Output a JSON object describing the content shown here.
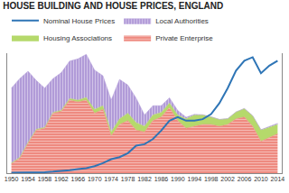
{
  "chart_data": {
    "type": "area",
    "title": "HOUSE BUILDING AND HOUSE PRICES, ENGLAND",
    "x": [
      1950,
      1952,
      1954,
      1956,
      1958,
      1960,
      1962,
      1964,
      1966,
      1968,
      1970,
      1972,
      1974,
      1976,
      1978,
      1980,
      1982,
      1984,
      1986,
      1988,
      1990,
      1992,
      1994,
      1996,
      1998,
      2000,
      2002,
      2004,
      2006,
      2008,
      2010,
      2012,
      2014
    ],
    "series": [
      {
        "name": "Private Enterprise",
        "color": "#ee8a80",
        "values": [
          25,
          40,
          80,
          115,
          120,
          160,
          165,
          195,
          190,
          195,
          160,
          170,
          100,
          130,
          140,
          115,
          110,
          140,
          150,
          175,
          140,
          120,
          125,
          130,
          130,
          125,
          130,
          145,
          150,
          125,
          85,
          95,
          105
        ]
      },
      {
        "name": "Housing Associations",
        "color": "#b5d96b",
        "values": [
          2,
          2,
          2,
          2,
          2,
          2,
          3,
          4,
          5,
          7,
          10,
          10,
          10,
          15,
          20,
          20,
          15,
          15,
          12,
          12,
          15,
          25,
          30,
          25,
          20,
          18,
          15,
          18,
          22,
          28,
          30,
          28,
          25
        ]
      },
      {
        "name": "Local Authorities",
        "color": "#b19bd8",
        "values": [
          200,
          210,
          190,
          130,
          105,
          90,
          100,
          100,
          110,
          115,
          105,
          80,
          85,
          105,
          75,
          65,
          30,
          25,
          18,
          14,
          12,
          4,
          2,
          1,
          0.5,
          0.5,
          0.3,
          0.3,
          0.5,
          0.5,
          1,
          2,
          3
        ]
      },
      {
        "name": "Nominal House Prices",
        "color": "#2e75b6",
        "type": "line",
        "axis": "y2",
        "values": [
          1,
          1,
          1.5,
          2,
          2,
          3,
          4,
          6,
          8,
          10,
          14,
          20,
          28,
          32,
          40,
          55,
          58,
          68,
          85,
          105,
          112,
          105,
          105,
          108,
          118,
          140,
          170,
          205,
          225,
          232,
          200,
          215,
          225
        ]
      }
    ],
    "xlim": [
      1949,
      2015
    ],
    "xticks": [
      1950,
      1954,
      1958,
      1962,
      1966,
      1970,
      1974,
      1978,
      1982,
      1986,
      1990,
      1994,
      1998,
      2002,
      2006,
      2010,
      2014
    ],
    "ylim": [
      0,
      320
    ],
    "y2lim": [
      0,
      240
    ],
    "stacked": true,
    "grid": false,
    "legend": "top",
    "tick_labels": "x"
  }
}
